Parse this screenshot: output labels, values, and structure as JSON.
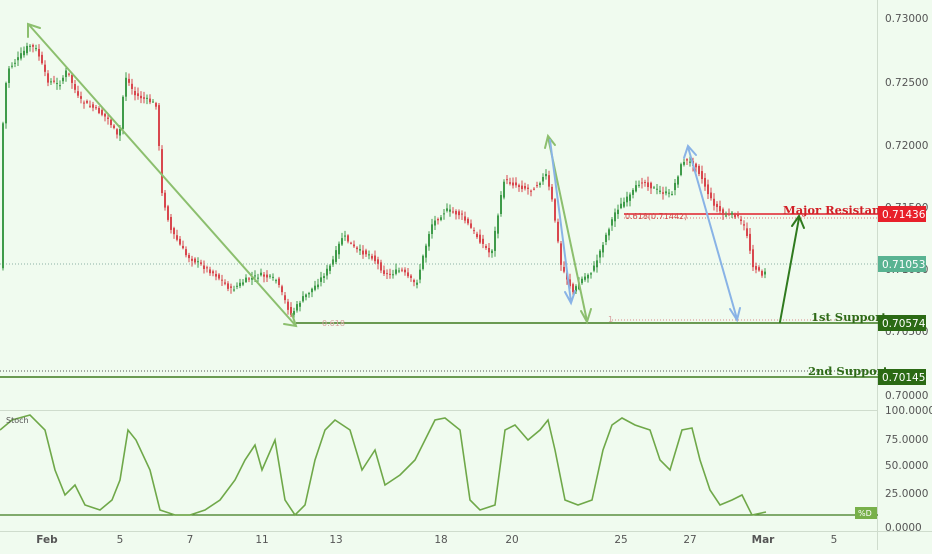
{
  "chart_data": [
    {
      "type": "candlestick",
      "title": "",
      "y_ticks": [
        "0.73000",
        "0.72500",
        "0.72000",
        "0.71500",
        "0.71000",
        "0.70500",
        "0.70000"
      ],
      "y_range": [
        0.6988,
        0.7312
      ],
      "x_ticks": [
        "Feb",
        "5",
        "7",
        "11",
        "13",
        "18",
        "20",
        "25",
        "27",
        "Mar",
        "5"
      ],
      "colors": {
        "up": "#3f9b4a",
        "down": "#d8474e",
        "background": "#f0fbef"
      },
      "levels": [
        {
          "label": "Major Resistance",
          "value": "0.71436",
          "color": "#e0202c"
        },
        {
          "label": "1st Support",
          "value": "0.70574",
          "color": "#3e7a1f"
        },
        {
          "label": "2nd Support",
          "value": "0.70145",
          "color": "#3e7a1f"
        }
      ],
      "current_price": "0.71053",
      "fib_labels": [
        "0.618(0.71442)",
        "0.618",
        "1"
      ],
      "annotations": [
        "green arrow up toward Major Resistance",
        "blue and green down-swing arrows"
      ]
    },
    {
      "type": "line",
      "name": "Stoch",
      "y_ticks": [
        "100.0000",
        "75.0000",
        "50.0000",
        "25.0000",
        "0.0000"
      ],
      "y_range": [
        0,
        100
      ],
      "series": [
        {
          "name": "%D"
        }
      ]
    }
  ],
  "labels": {
    "major_resistance": "Major Resistance",
    "first_support": "1st Support",
    "second_support": "2nd Support",
    "fib_upper": "0.618(0.71442)",
    "fib_lower": "0.618",
    "fib_one": "1",
    "stoch_title": "Stoch",
    "stoch_series": "%D"
  },
  "tags": {
    "resistance": "0.71436",
    "current": "0.71053",
    "support1": "0.70574",
    "support2": "0.70145"
  }
}
